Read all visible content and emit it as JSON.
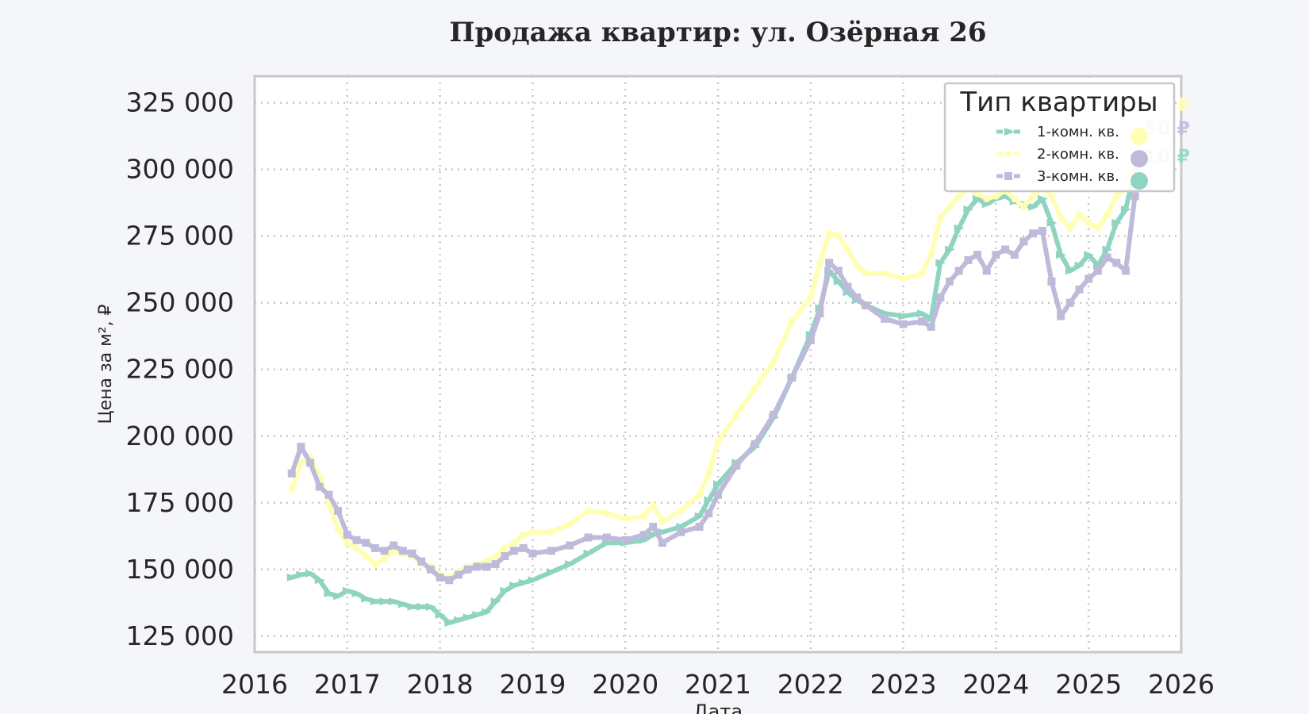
{
  "chart_data": {
    "type": "line",
    "title": "Продажа квартир: ул. Озёрная 26",
    "xlabel": "Дата",
    "ylabel": "Цена за м², ₽",
    "x_ticks": [
      "2016",
      "2017",
      "2018",
      "2019",
      "2020",
      "2021",
      "2022",
      "2023",
      "2024",
      "2025",
      "2026"
    ],
    "y_ticks": [
      "325 000",
      "300 000",
      "275 000",
      "250 000",
      "225 000",
      "200 000",
      "175 000",
      "150 000",
      "125 000"
    ],
    "xlim": [
      2016.0,
      2026.0
    ],
    "ylim": [
      119000,
      335000
    ],
    "grid": true,
    "legend": {
      "title": "Тип квартиры",
      "placement": "top-right",
      "entries": [
        "1-комн. кв.",
        "2-комн. кв.",
        "3-комн. кв."
      ]
    },
    "end_labels": [
      {
        "series": "2-комн. кв.",
        "text": "₽"
      },
      {
        "series": "3-комн. кв.",
        "text": "50 ₽"
      },
      {
        "series": "1-комн. кв.",
        "text": "10 ₽"
      }
    ],
    "series": [
      {
        "name": "1-комн. кв.",
        "color": "#8fd3c1",
        "x": [
          2016.4,
          2016.5,
          2016.6,
          2016.7,
          2016.8,
          2016.9,
          2017.0,
          2017.1,
          2017.2,
          2017.3,
          2017.4,
          2017.5,
          2017.6,
          2017.7,
          2017.8,
          2017.9,
          2018.0,
          2018.1,
          2018.2,
          2018.3,
          2018.4,
          2018.5,
          2018.6,
          2018.7,
          2018.8,
          2018.9,
          2019.0,
          2019.2,
          2019.4,
          2019.6,
          2019.8,
          2020.0,
          2020.2,
          2020.3,
          2020.4,
          2020.6,
          2020.8,
          2020.9,
          2021.0,
          2021.2,
          2021.4,
          2021.6,
          2021.8,
          2022.0,
          2022.1,
          2022.2,
          2022.3,
          2022.4,
          2022.5,
          2022.6,
          2022.8,
          2023.0,
          2023.2,
          2023.3,
          2023.4,
          2023.5,
          2023.6,
          2023.7,
          2023.8,
          2023.9,
          2024.0,
          2024.1,
          2024.2,
          2024.3,
          2024.4,
          2024.5,
          2024.6,
          2024.7,
          2024.8,
          2024.9,
          2025.0,
          2025.1,
          2025.2,
          2025.3,
          2025.4,
          2025.5
        ],
        "y": [
          147000,
          148000,
          148500,
          146000,
          141000,
          140000,
          142000,
          141000,
          139000,
          138000,
          138000,
          138000,
          137000,
          136000,
          136000,
          136000,
          133000,
          130000,
          131000,
          132000,
          133000,
          134000,
          138000,
          142000,
          144000,
          145000,
          146000,
          149000,
          152000,
          156000,
          160000,
          160000,
          161000,
          163000,
          164000,
          166000,
          170000,
          176000,
          182000,
          190000,
          196000,
          207000,
          222000,
          238000,
          248000,
          262000,
          258000,
          254000,
          251000,
          249000,
          246000,
          245000,
          246000,
          244000,
          265000,
          270000,
          278000,
          285000,
          289000,
          287000,
          289000,
          290000,
          288000,
          287000,
          286000,
          289000,
          280000,
          268000,
          262000,
          264000,
          268000,
          264000,
          270000,
          280000,
          285000,
          300000
        ]
      },
      {
        "name": "2-комн. кв.",
        "color": "#ffffb3",
        "x": [
          2016.4,
          2016.5,
          2016.6,
          2016.7,
          2016.8,
          2016.9,
          2017.0,
          2017.1,
          2017.2,
          2017.3,
          2017.4,
          2017.5,
          2017.6,
          2017.7,
          2017.8,
          2017.9,
          2018.0,
          2018.1,
          2018.2,
          2018.3,
          2018.4,
          2018.5,
          2018.6,
          2018.7,
          2018.8,
          2018.9,
          2019.0,
          2019.2,
          2019.4,
          2019.6,
          2019.8,
          2020.0,
          2020.2,
          2020.3,
          2020.4,
          2020.6,
          2020.8,
          2020.9,
          2021.0,
          2021.2,
          2021.4,
          2021.6,
          2021.8,
          2022.0,
          2022.1,
          2022.2,
          2022.3,
          2022.4,
          2022.5,
          2022.6,
          2022.8,
          2023.0,
          2023.2,
          2023.3,
          2023.4,
          2023.5,
          2023.6,
          2023.7,
          2023.8,
          2023.9,
          2024.0,
          2024.1,
          2024.2,
          2024.3,
          2024.4,
          2024.5,
          2024.6,
          2024.7,
          2024.8,
          2024.9,
          2025.0,
          2025.1,
          2025.2,
          2025.3,
          2025.4,
          2025.5
        ],
        "y": [
          180000,
          190000,
          192000,
          185000,
          175000,
          165000,
          160000,
          158000,
          155000,
          152000,
          154000,
          157000,
          156000,
          155000,
          152000,
          151000,
          148000,
          147000,
          149000,
          151000,
          152000,
          153000,
          155000,
          158000,
          160000,
          163000,
          164000,
          164000,
          167000,
          172000,
          171000,
          169000,
          170000,
          174000,
          168000,
          172000,
          178000,
          186000,
          198000,
          208000,
          218000,
          228000,
          243000,
          252000,
          265000,
          276000,
          275000,
          270000,
          264000,
          261000,
          261000,
          259000,
          261000,
          268000,
          282000,
          286000,
          290000,
          293000,
          291000,
          289000,
          290000,
          292000,
          289000,
          286000,
          290000,
          293000,
          290000,
          282000,
          278000,
          283000,
          280000,
          278000,
          283000,
          290000,
          293000,
          305000
        ]
      },
      {
        "name": "3-комн. кв.",
        "color": "#bebada",
        "x": [
          2016.4,
          2016.5,
          2016.6,
          2016.7,
          2016.8,
          2016.9,
          2017.0,
          2017.1,
          2017.2,
          2017.3,
          2017.4,
          2017.5,
          2017.6,
          2017.7,
          2017.8,
          2017.9,
          2018.0,
          2018.1,
          2018.2,
          2018.3,
          2018.4,
          2018.5,
          2018.6,
          2018.7,
          2018.8,
          2018.9,
          2019.0,
          2019.2,
          2019.4,
          2019.6,
          2019.8,
          2020.0,
          2020.2,
          2020.3,
          2020.4,
          2020.6,
          2020.8,
          2020.9,
          2021.0,
          2021.2,
          2021.4,
          2021.6,
          2021.8,
          2022.0,
          2022.1,
          2022.2,
          2022.3,
          2022.4,
          2022.5,
          2022.6,
          2022.8,
          2023.0,
          2023.2,
          2023.3,
          2023.4,
          2023.5,
          2023.6,
          2023.7,
          2023.8,
          2023.9,
          2024.0,
          2024.1,
          2024.2,
          2024.3,
          2024.4,
          2024.5,
          2024.6,
          2024.7,
          2024.8,
          2024.9,
          2025.0,
          2025.1,
          2025.2,
          2025.3,
          2025.4,
          2025.5
        ],
        "y": [
          186000,
          196000,
          190000,
          181000,
          178000,
          172000,
          163000,
          161000,
          160000,
          158000,
          157000,
          159000,
          157000,
          156000,
          153000,
          150000,
          147000,
          146000,
          148000,
          150000,
          151000,
          151000,
          152000,
          155000,
          157000,
          158000,
          156000,
          157000,
          159000,
          162000,
          162000,
          161000,
          163000,
          166000,
          160000,
          164000,
          166000,
          171000,
          178000,
          189000,
          197000,
          208000,
          222000,
          236000,
          246000,
          265000,
          262000,
          256000,
          252000,
          249000,
          244000,
          242000,
          243000,
          241000,
          252000,
          258000,
          262000,
          266000,
          268000,
          262000,
          268000,
          270000,
          268000,
          273000,
          276000,
          277000,
          258000,
          245000,
          250000,
          255000,
          259000,
          262000,
          267000,
          265000,
          262000,
          290000
        ]
      }
    ]
  }
}
